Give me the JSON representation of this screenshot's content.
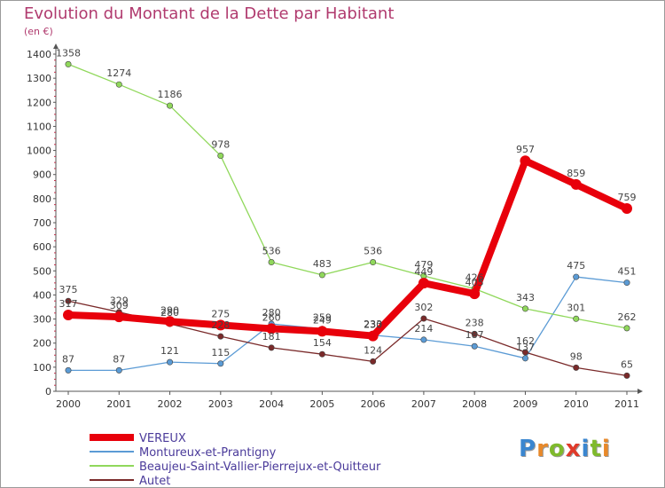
{
  "title": "Evolution du Montant de la Dette par Habitant",
  "unit_label": "(en €)",
  "logo": {
    "letters": [
      "P",
      "r",
      "o",
      "x",
      "i",
      "t",
      "i"
    ],
    "colors": [
      "#3a86d0",
      "#e8892a",
      "#7fba2c",
      "#e03a2a",
      "#3a86d0",
      "#7fba2c",
      "#e8892a"
    ]
  },
  "chart_data": {
    "type": "line",
    "title": "Evolution du Montant de la Dette par Habitant",
    "ylabel": "(en €)",
    "x": [
      "2000",
      "2001",
      "2002",
      "2003",
      "2004",
      "2005",
      "2006",
      "2007",
      "2008",
      "2009",
      "2010",
      "2011"
    ],
    "ylim": [
      0,
      1400
    ],
    "yticks": [
      0,
      100,
      200,
      300,
      400,
      500,
      600,
      700,
      800,
      900,
      1000,
      1100,
      1200,
      1300,
      1400
    ],
    "grid": false,
    "legend_position": "bottom-left",
    "series": [
      {
        "name": "VEREUX",
        "color": "#e8000b",
        "emphasis": true,
        "values": [
          317,
          309,
          290,
          275,
          260,
          249,
          230,
          449,
          405,
          957,
          859,
          759
        ]
      },
      {
        "name": "Montureux-et-Prantigny",
        "color": "#5b9bd5",
        "values": [
          87,
          87,
          121,
          115,
          280,
          259,
          233,
          214,
          187,
          137,
          475,
          451
        ]
      },
      {
        "name": "Beaujeu-Saint-Vallier-Pierrejux-et-Quitteur",
        "color": "#90d85b",
        "values": [
          1358,
          1274,
          1186,
          978,
          536,
          483,
          536,
          479,
          426,
          343,
          301,
          262
        ]
      },
      {
        "name": "Autet",
        "color": "#7a2a2a",
        "values": [
          375,
          329,
          280,
          228,
          181,
          154,
          124,
          302,
          238,
          162,
          98,
          65
        ]
      }
    ]
  }
}
